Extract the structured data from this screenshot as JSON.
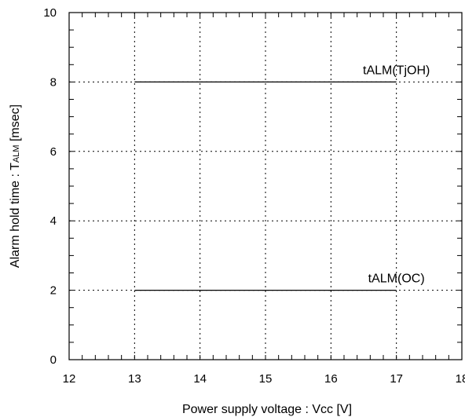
{
  "chart_data": {
    "type": "line",
    "xlabel": "Power supply voltage : Vcc [V]",
    "ylabel_main": "Alarm hold time : T",
    "ylabel_sub": "ALM",
    "ylabel_unit": " [msec]",
    "xlim": [
      12,
      18
    ],
    "ylim": [
      0,
      10
    ],
    "x_ticks": [
      "12",
      "13",
      "14",
      "15",
      "16",
      "17",
      "18"
    ],
    "y_ticks": [
      "0",
      "2",
      "4",
      "6",
      "8",
      "10"
    ],
    "grid": "dotted",
    "series": [
      {
        "name": "tALM(TjOH)",
        "x": [
          13,
          17
        ],
        "y": [
          8,
          8
        ]
      },
      {
        "name": "tALM(OC)",
        "x": [
          13,
          17
        ],
        "y": [
          2,
          2
        ]
      }
    ]
  }
}
